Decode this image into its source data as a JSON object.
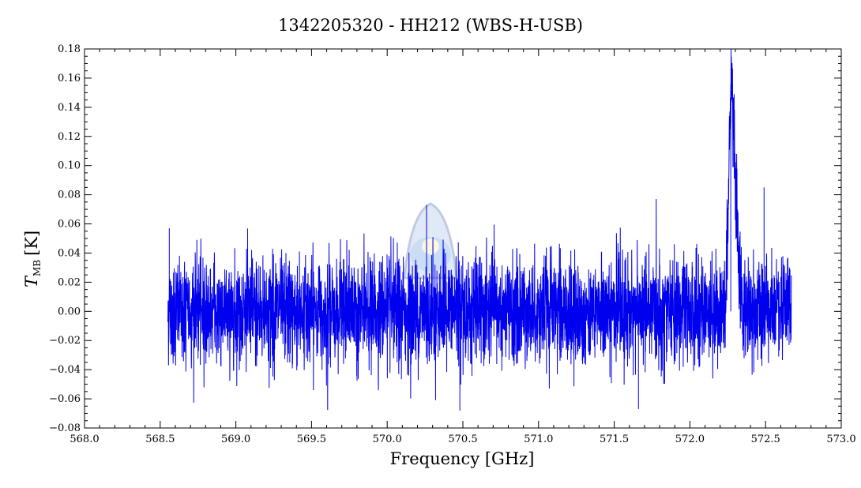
{
  "chart_data": {
    "type": "line",
    "title": "1342205320 - HH212 (WBS-H-USB)",
    "xlabel": "Frequency [GHz]",
    "ylabel_symbol": "T",
    "ylabel_subscript": "MB",
    "ylabel_unit": "[K]",
    "xlim": [
      568.0,
      573.0
    ],
    "ylim": [
      -0.08,
      0.18
    ],
    "x_ticks": [
      "568.0",
      "568.5",
      "569.0",
      "569.5",
      "570.0",
      "570.5",
      "571.0",
      "571.5",
      "572.0",
      "572.5",
      "573.0"
    ],
    "y_ticks": [
      "−0.08",
      "−0.06",
      "−0.04",
      "−0.02",
      "0.00",
      "0.02",
      "0.04",
      "0.06",
      "0.08",
      "0.10",
      "0.12",
      "0.14",
      "0.16",
      "0.18"
    ],
    "grid": false,
    "series": [
      {
        "color": "#0000ee",
        "x_range": [
          568.55,
          572.67
        ],
        "noise_rms": 0.018,
        "features": [
          {
            "center": 572.27,
            "peak": 0.155,
            "width": 0.015
          },
          {
            "center": 572.3,
            "peak": 0.08,
            "width": 0.02
          }
        ],
        "notable_values": [
          {
            "x": 568.56,
            "y": 0.057
          },
          {
            "x": 570.26,
            "y": 0.073
          },
          {
            "x": 572.27,
            "y": 0.156
          },
          {
            "x": 572.49,
            "y": 0.085
          },
          {
            "x": 570.48,
            "y": -0.068
          },
          {
            "x": 571.66,
            "y": -0.067
          }
        ]
      }
    ]
  },
  "colors": {
    "series": "#0000ee",
    "axes": "#000000",
    "background": "#ffffff"
  },
  "watermark": "herschel-logo"
}
